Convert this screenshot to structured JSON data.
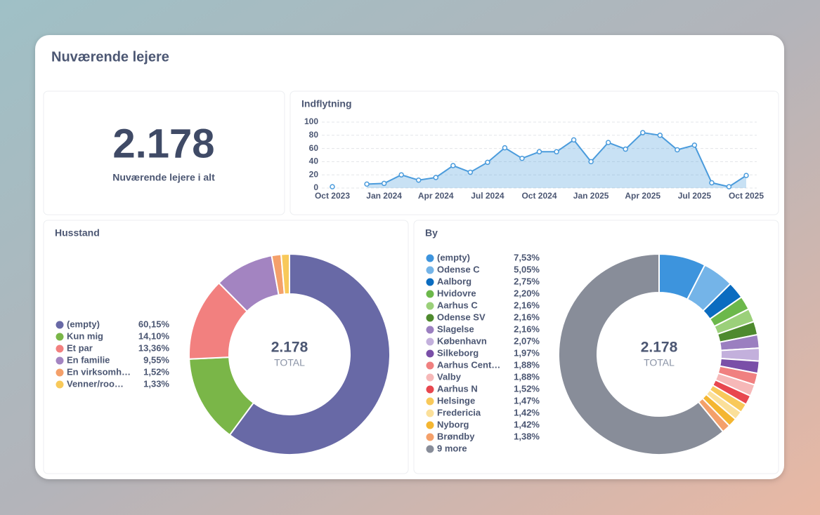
{
  "title": "Nuværende lejere",
  "kpi": {
    "value": "2.178",
    "label": "Nuværende lejere i alt"
  },
  "chart_data": [
    {
      "type": "line",
      "title": "Indflytning",
      "categories": [
        "Oct 2023",
        null,
        null,
        "Jan 2024",
        null,
        null,
        "Apr 2024",
        null,
        null,
        "Jul 2024",
        null,
        null,
        "Oct 2024",
        null,
        null,
        "Jan 2025",
        null,
        null,
        "Apr 2025",
        null,
        null,
        "Jul 2025",
        null,
        null,
        "Oct 2025"
      ],
      "values": [
        2,
        null,
        6,
        7,
        20,
        12,
        16,
        34,
        24,
        39,
        61,
        45,
        55,
        55,
        73,
        40,
        69,
        59,
        84,
        80,
        58,
        65,
        8,
        2,
        19
      ],
      "color": "#4a9bdc",
      "ylim": [
        0,
        100
      ],
      "yticks": [
        0,
        20,
        40,
        60,
        80,
        100
      ],
      "grid": true
    },
    {
      "type": "pie",
      "title": "Husstand",
      "categories": [
        "(empty)",
        "Kun mig",
        "Et par",
        "En familie",
        "En virksomh…",
        "Venner/roo…"
      ],
      "values": [
        60.15,
        14.1,
        13.36,
        9.55,
        1.52,
        1.33
      ],
      "value_labels": [
        "60,15%",
        "14,10%",
        "13,36%",
        "9,55%",
        "1,52%",
        "1,33%"
      ],
      "colors": [
        "#6869a6",
        "#7ab648",
        "#f2807f",
        "#a384c1",
        "#f4a06a",
        "#f8c95a"
      ],
      "center_value": "2.178",
      "center_label": "TOTAL"
    },
    {
      "type": "pie",
      "title": "By",
      "categories": [
        "(empty)",
        "Odense C",
        "Aalborg",
        "Hvidovre",
        "Aarhus C",
        "Odense SV",
        "Slagelse",
        "København",
        "Silkeborg",
        "Aarhus Cent…",
        "Valby",
        "Aarhus N",
        "Helsinge",
        "Fredericia",
        "Nyborg",
        "Brøndby",
        "9 more"
      ],
      "values": [
        7.53,
        5.05,
        2.75,
        2.2,
        2.16,
        2.16,
        2.16,
        2.07,
        1.97,
        1.88,
        1.88,
        1.52,
        1.47,
        1.42,
        1.42,
        1.38,
        60.98
      ],
      "value_labels": [
        "7,53%",
        "5,05%",
        "2,75%",
        "2,20%",
        "2,16%",
        "2,16%",
        "2,16%",
        "2,07%",
        "1,97%",
        "1,88%",
        "1,88%",
        "1,52%",
        "1,47%",
        "1,42%",
        "1,42%",
        "1,38%",
        null
      ],
      "colors": [
        "#3d94dd",
        "#74b4e8",
        "#0b6cc0",
        "#6cb84b",
        "#9bd07a",
        "#4e8a2e",
        "#9b7fc0",
        "#c3b0dc",
        "#7a4fa8",
        "#f08080",
        "#f6b8b8",
        "#e8474f",
        "#f8c95a",
        "#fbe09a",
        "#f4b632",
        "#f4a06a",
        "#888d99"
      ],
      "center_value": "2.178",
      "center_label": "TOTAL"
    }
  ]
}
